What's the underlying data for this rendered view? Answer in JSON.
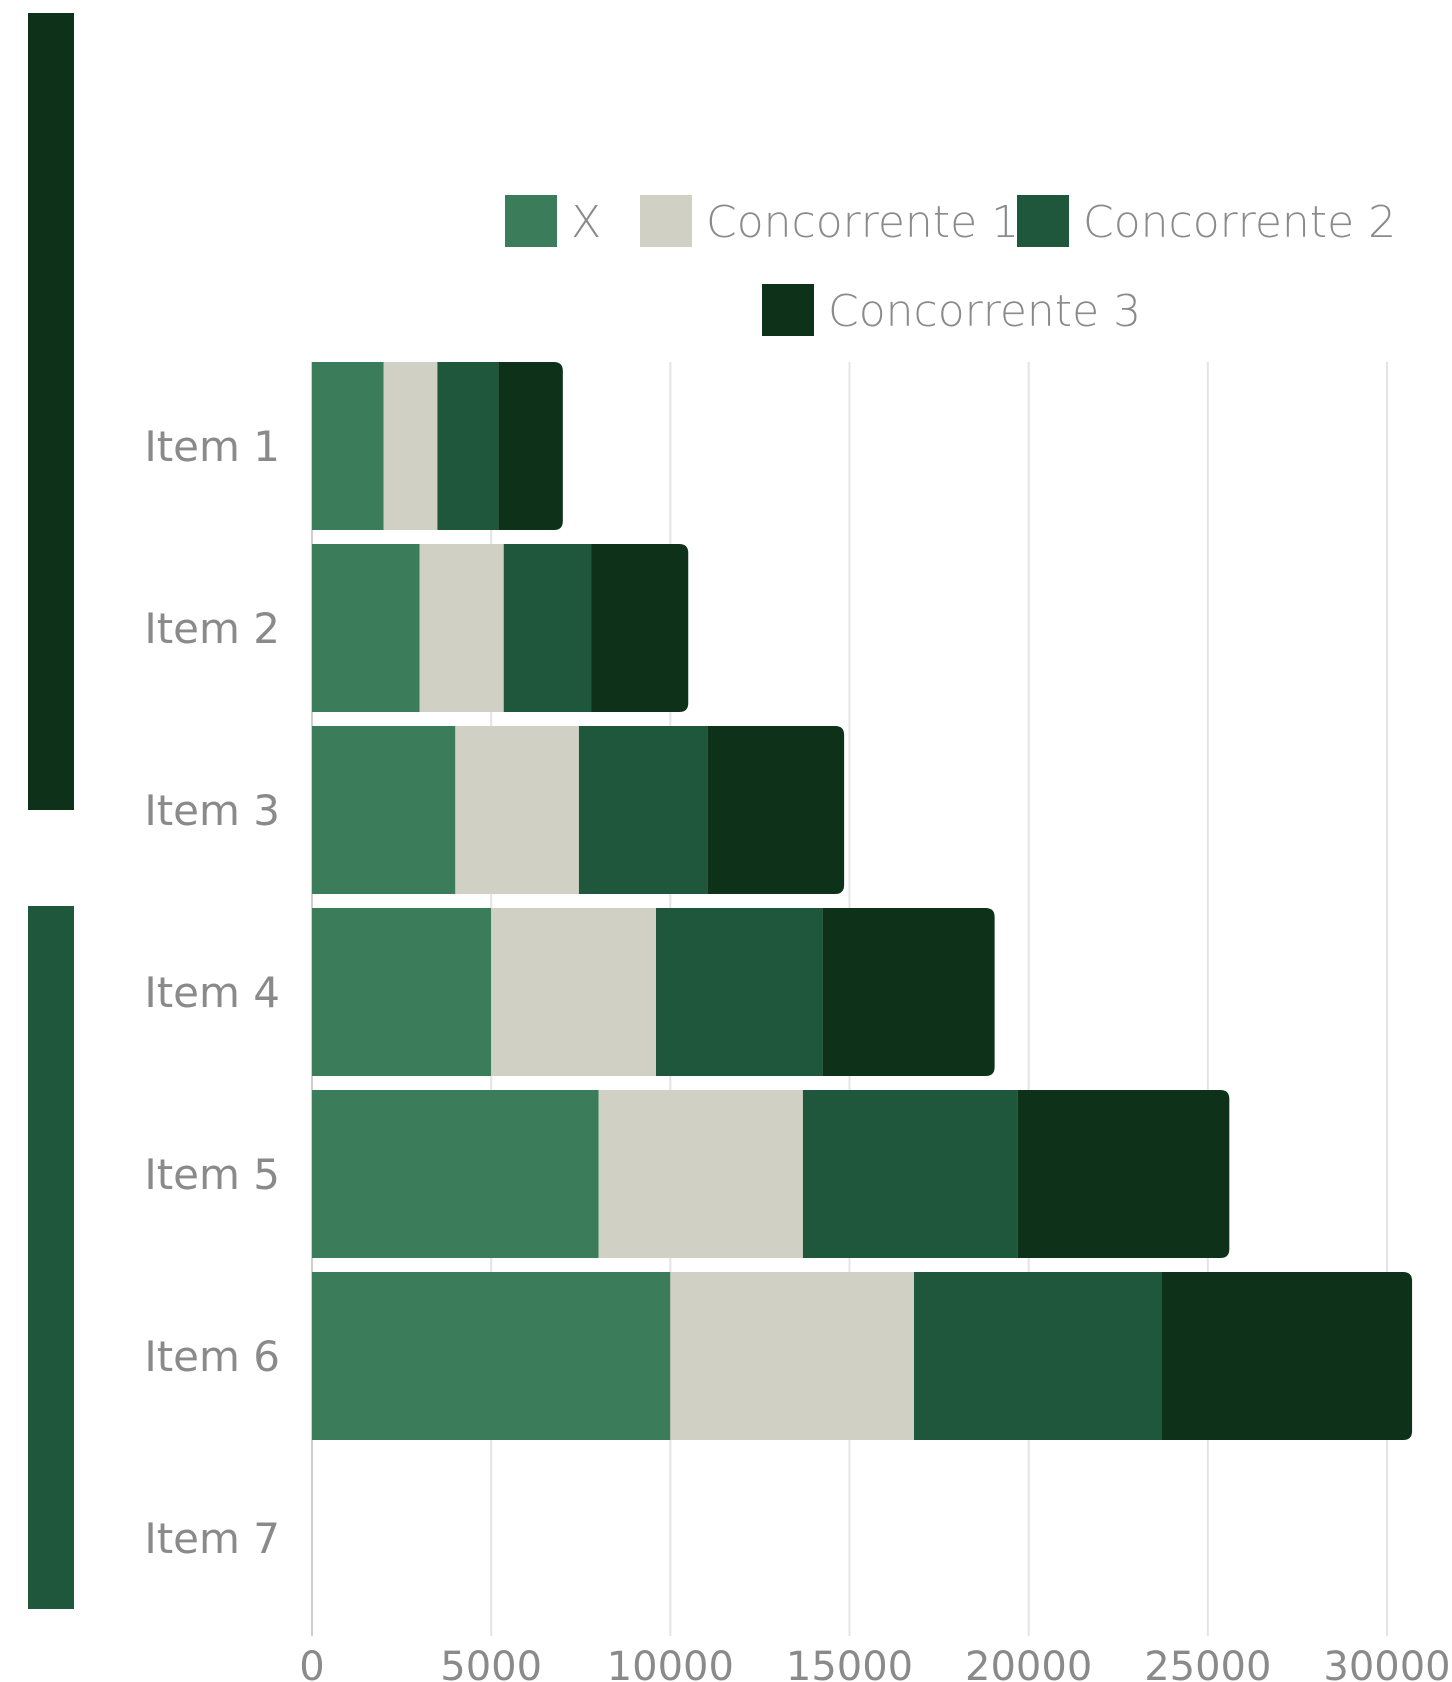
{
  "decor": {
    "bar_top_color": "#0e3219",
    "bar_bottom_color": "#1e573b"
  },
  "chart_data": {
    "type": "bar",
    "orientation": "horizontal",
    "stacked": true,
    "title": "",
    "xlabel": "",
    "ylabel": "",
    "categories": [
      "Item 1",
      "Item 2",
      "Item 3",
      "Item 4",
      "Item 5",
      "Item 6",
      "Item 7"
    ],
    "series": [
      {
        "name": "X",
        "color": "#3b7d5a",
        "values": [
          2000,
          3000,
          4000,
          5000,
          8000,
          10000,
          0
        ]
      },
      {
        "name": "Concorrente 1",
        "color": "#d0d0c4",
        "values": [
          1500,
          2350,
          3450,
          4600,
          5700,
          6800,
          0
        ]
      },
      {
        "name": "Concorrente 2",
        "color": "#1e573b",
        "values": [
          1700,
          2450,
          3600,
          4650,
          6000,
          6900,
          0
        ]
      },
      {
        "name": "Concorrente 3",
        "color": "#0e3219",
        "values": [
          1800,
          2700,
          3800,
          4800,
          5900,
          7000,
          0
        ]
      }
    ],
    "xlim": [
      0,
      30000
    ],
    "xticks": [
      "0",
      "5000",
      "10000",
      "15000",
      "20000",
      "25000",
      "30000"
    ],
    "grid": true,
    "legend_position": "top"
  }
}
